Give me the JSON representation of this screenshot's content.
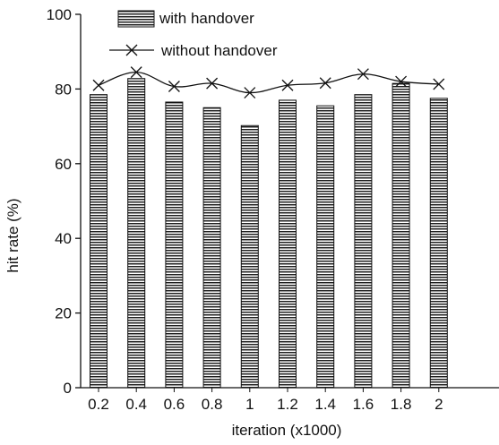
{
  "chart_data": {
    "type": "bar",
    "title": "",
    "xlabel": "iteration (x1000)",
    "ylabel": "hit rate (%)",
    "categories": [
      "0.2",
      "0.4",
      "0.6",
      "0.8",
      "1",
      "1.2",
      "1.4",
      "1.6",
      "1.8",
      "2"
    ],
    "ylim": [
      0,
      100
    ],
    "yticks": [
      0,
      20,
      40,
      60,
      80,
      100
    ],
    "grid": false,
    "legend_position": "top-left",
    "series": [
      {
        "name": "with handover",
        "type": "bar",
        "pattern": "horizontal-hatch",
        "values": [
          78.5,
          82.8,
          76.5,
          75.0,
          70.2,
          77.0,
          75.5,
          78.5,
          81.5,
          77.5
        ]
      },
      {
        "name": "without handover",
        "type": "line",
        "marker": "x",
        "values": [
          81.0,
          84.5,
          80.7,
          81.5,
          79.0,
          81.0,
          81.6,
          84.0,
          82.0,
          81.3
        ]
      }
    ]
  }
}
